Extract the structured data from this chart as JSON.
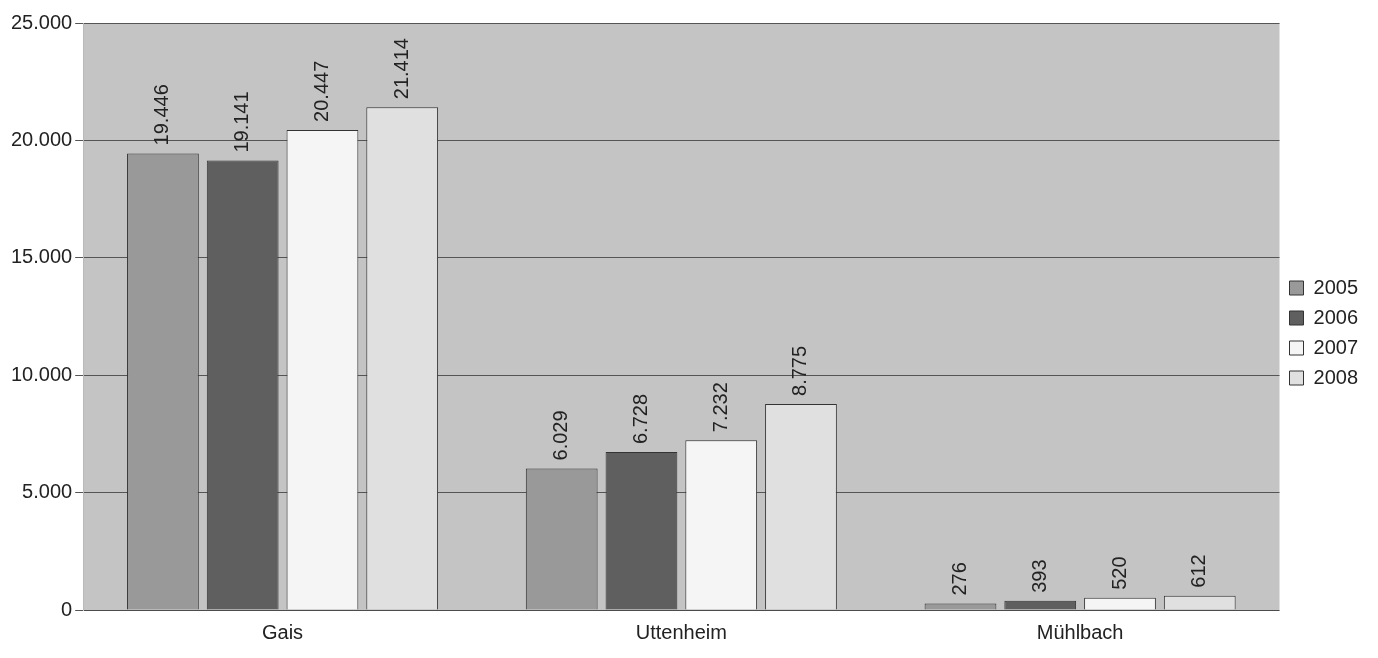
{
  "chart_data": {
    "type": "bar",
    "categories": [
      "Gais",
      "Uttenheim",
      "Mühlbach"
    ],
    "series": [
      {
        "name": "2005",
        "color": "#999999",
        "values": [
          19446,
          6029,
          276
        ],
        "value_labels": [
          "19.446",
          "6.029",
          "276"
        ]
      },
      {
        "name": "2006",
        "color": "#5f5f5f",
        "values": [
          19141,
          6728,
          393
        ],
        "value_labels": [
          "19.141",
          "6.728",
          "393"
        ]
      },
      {
        "name": "2007",
        "color": "#f5f5f5",
        "values": [
          20447,
          7232,
          520
        ],
        "value_labels": [
          "20.447",
          "7.232",
          "520"
        ]
      },
      {
        "name": "2008",
        "color": "#e0e0e0",
        "values": [
          21414,
          8775,
          612
        ],
        "value_labels": [
          "21.414",
          "8.775",
          "612"
        ]
      }
    ],
    "ylim": [
      0,
      25000
    ],
    "yticks": [
      {
        "value": 0,
        "label": "0"
      },
      {
        "value": 5000,
        "label": "5.000"
      },
      {
        "value": 10000,
        "label": "10.000"
      },
      {
        "value": 15000,
        "label": "15.000"
      },
      {
        "value": 20000,
        "label": "20.000"
      },
      {
        "value": 25000,
        "label": "25.000"
      }
    ],
    "grid": "y",
    "legend": "right"
  }
}
